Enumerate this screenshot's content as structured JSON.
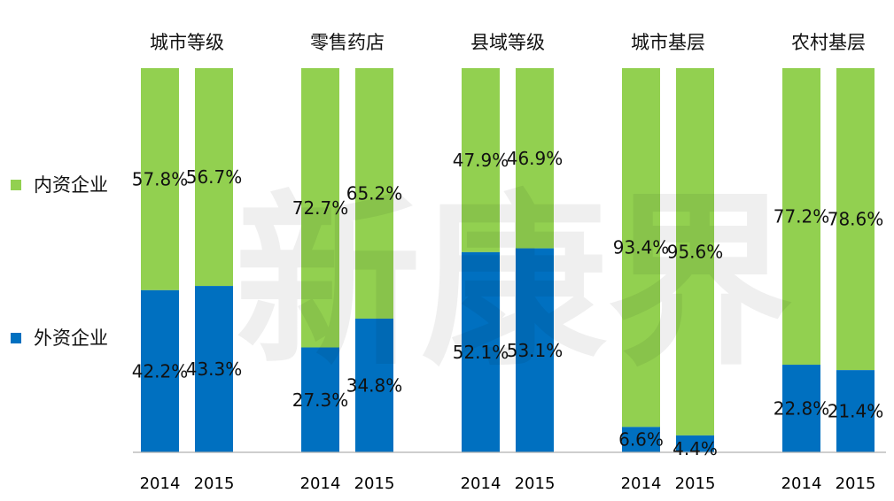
{
  "chart_data": {
    "type": "bar",
    "stacked": true,
    "percent": true,
    "groups": [
      {
        "name": "城市等级",
        "years": [
          "2014",
          "2015"
        ],
        "foreign": [
          42.2,
          43.3
        ],
        "domestic": [
          57.8,
          56.7
        ]
      },
      {
        "name": "零售药店",
        "years": [
          "2014",
          "2015"
        ],
        "foreign": [
          27.3,
          34.8
        ],
        "domestic": [
          72.7,
          65.2
        ]
      },
      {
        "name": "县域等级",
        "years": [
          "2014",
          "2015"
        ],
        "foreign": [
          52.1,
          53.1
        ],
        "domestic": [
          47.9,
          46.9
        ]
      },
      {
        "name": "城市基层",
        "years": [
          "2014",
          "2015"
        ],
        "foreign": [
          6.6,
          4.4
        ],
        "domestic": [
          93.4,
          95.6
        ]
      },
      {
        "name": "农村基层",
        "years": [
          "2014",
          "2015"
        ],
        "foreign": [
          22.8,
          21.4
        ],
        "domestic": [
          77.2,
          78.6
        ]
      }
    ],
    "series": [
      {
        "key": "domestic",
        "name": "内资企业",
        "color": "#92d050"
      },
      {
        "key": "foreign",
        "name": "外资企业",
        "color": "#0070c0"
      }
    ],
    "ylim": [
      0,
      100
    ],
    "legend": "left",
    "grid": false
  },
  "watermark": "新康界"
}
